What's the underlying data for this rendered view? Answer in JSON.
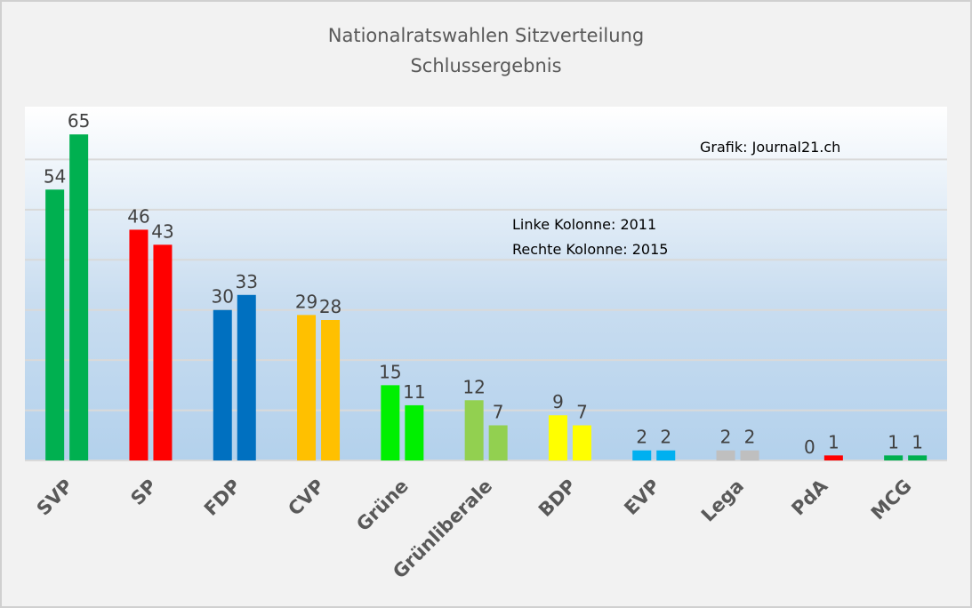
{
  "chart_data": {
    "type": "bar",
    "title": "Nationalratswahlen Sitzverteilung",
    "subtitle": "Schlussergebnis",
    "annotations": [
      "Grafik: Journal21.ch",
      "Linke Kolonne: 2011",
      "Rechte Kolonne: 2015"
    ],
    "categories": [
      "SVP",
      "SP",
      "FDP",
      "CVP",
      "Grüne",
      "Grünliberale",
      "BDP",
      "EVP",
      "Lega",
      "PdA",
      "MCG"
    ],
    "series": [
      {
        "values": [
          54,
          46,
          30,
          29,
          15,
          12,
          9,
          2,
          2,
          0,
          1
        ]
      },
      {
        "values": [
          65,
          43,
          33,
          28,
          11,
          7,
          7,
          2,
          2,
          1,
          1
        ]
      }
    ],
    "colors": [
      "#00b050",
      "#ff0000",
      "#0070c0",
      "#ffc000",
      "#00f000",
      "#92d050",
      "#ffff00",
      "#00b0f0",
      "#bfbfbf",
      "#ff0000",
      "#00b050"
    ],
    "ylim": [
      0,
      70
    ],
    "grid": true,
    "ytick_step": 10,
    "y_axis_labels_shown": false,
    "data_labels": true
  }
}
